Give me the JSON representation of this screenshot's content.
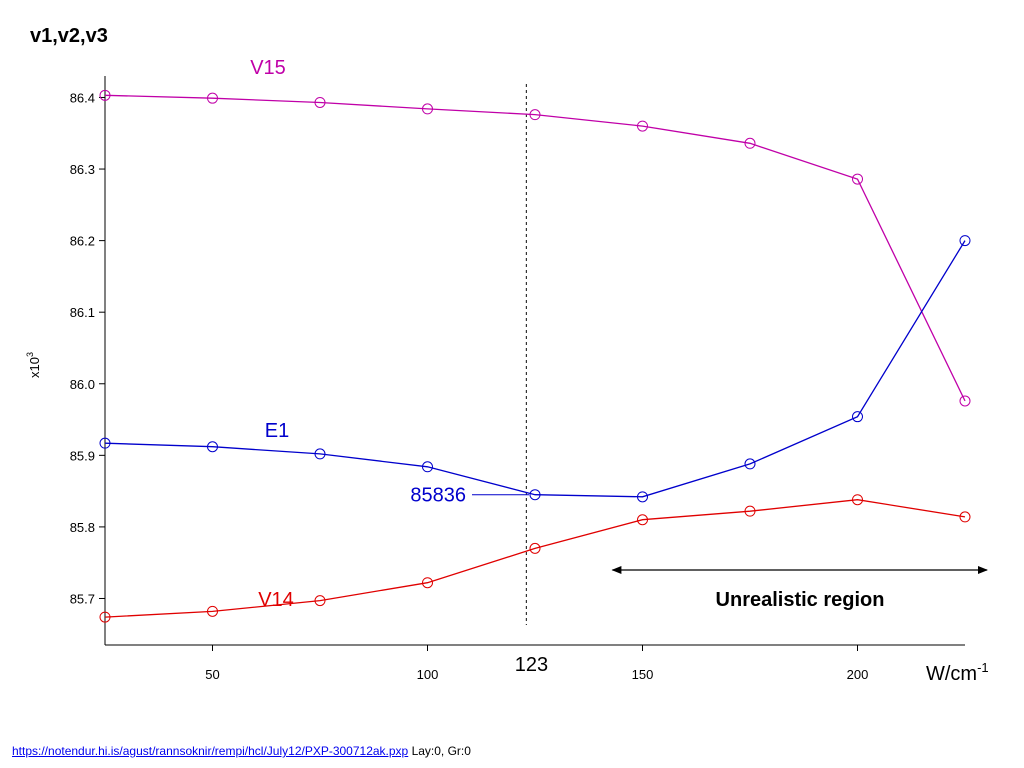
{
  "chart_data": {
    "type": "line",
    "title": "v1,v2,v3",
    "ylabel_multiplier": "x10",
    "ylabel_exponent": "3",
    "xlabel_unit_base": "W/cm",
    "xlabel_unit_exp": "-1",
    "xlim": [
      25,
      225
    ],
    "ylim": [
      85.635,
      86.43
    ],
    "x_ticks": [
      50,
      100,
      150,
      200
    ],
    "y_ticks": [
      "86.4",
      "86.3",
      "86.2",
      "86.1",
      "86.0",
      "85.9",
      "85.8",
      "85.7"
    ],
    "y_tick_values": [
      86.4,
      86.3,
      86.2,
      86.1,
      86.0,
      85.9,
      85.8,
      85.7
    ],
    "grid": false,
    "series": [
      {
        "name": "V15",
        "color": "#c000a8",
        "x": [
          25,
          50,
          75,
          100,
          125,
          150,
          175,
          200,
          225
        ],
        "y": [
          86.403,
          86.399,
          86.393,
          86.384,
          86.376,
          86.36,
          86.336,
          86.286,
          85.976
        ]
      },
      {
        "name": "E1",
        "color": "#0000cc",
        "x": [
          25,
          50,
          75,
          100,
          125,
          150,
          175,
          200,
          225
        ],
        "y": [
          85.917,
          85.912,
          85.902,
          85.884,
          85.845,
          85.842,
          85.888,
          85.954,
          86.2
        ]
      },
      {
        "name": "V14",
        "color": "#e00000",
        "x": [
          25,
          50,
          75,
          100,
          125,
          150,
          175,
          200,
          225
        ],
        "y": [
          85.674,
          85.682,
          85.697,
          85.722,
          85.77,
          85.81,
          85.822,
          85.838,
          85.814
        ]
      }
    ],
    "annotations": {
      "vline_x": 123,
      "vline_label": "123",
      "e1_value_label": "85836",
      "region_label": "Unrealistic region",
      "region_x": [
        143,
        225
      ]
    }
  },
  "footer": {
    "link_text": "https://notendur.hi.is/agust/rannsoknir/rempi/hcl/July12/PXP-300712ak.pxp",
    "suffix": "Lay:0, Gr:0"
  }
}
